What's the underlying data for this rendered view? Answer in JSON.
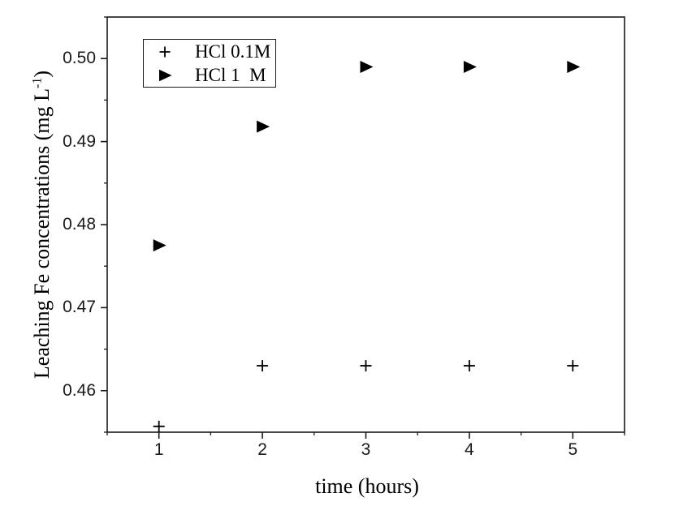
{
  "figure": {
    "background": "#ffffff",
    "axis_color": "#1a1a1a",
    "marker_color": "#000000"
  },
  "chart_data": {
    "type": "scatter",
    "title": "",
    "xlabel": "time (hours)",
    "ylabel": "Leaching Fe concentrations (mg L",
    "ylabel_superscript": "-1",
    "ylabel_suffix": ")",
    "x": [
      1,
      2,
      3,
      4,
      5
    ],
    "series": [
      {
        "name": "HCl 0.1M",
        "marker": "plus",
        "values": [
          0.4557,
          0.463,
          0.463,
          0.463,
          0.463
        ]
      },
      {
        "name": "HCl 1  M",
        "marker": "right-triangle",
        "values": [
          0.4775,
          0.4918,
          0.499,
          0.499,
          0.499
        ]
      }
    ],
    "xlim": [
      0.5,
      5.5
    ],
    "ylim": [
      0.455,
      0.505
    ],
    "x_major_ticks": [
      1,
      2,
      3,
      4,
      5
    ],
    "x_tick_labels": [
      "1",
      "2",
      "3",
      "4",
      "5"
    ],
    "x_minor_step": 0.5,
    "y_major_ticks": [
      0.46,
      0.47,
      0.48,
      0.49,
      0.5
    ],
    "y_tick_labels": [
      "0.46",
      "0.47",
      "0.48",
      "0.49",
      "0.50"
    ],
    "y_minor_step": 0.005,
    "grid": false,
    "legend_position": "upper-left-inside"
  }
}
